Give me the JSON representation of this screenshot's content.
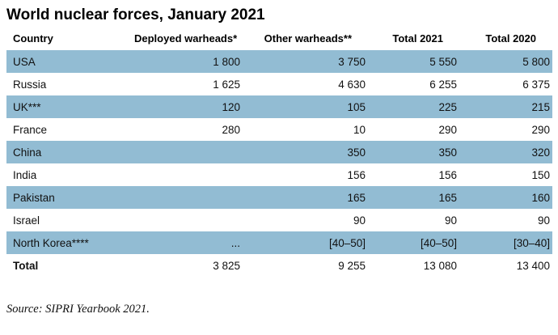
{
  "chart_data": {
    "type": "table",
    "title": "World nuclear forces, January 2021",
    "source": "Source: SIPRI Yearbook 2021.",
    "colors": {
      "row_highlight": "#92bcd3",
      "text": "#111111"
    },
    "columns": [
      "Country",
      "Deployed warheads*",
      "Other warheads**",
      "Total 2021",
      "Total 2020"
    ],
    "rows": [
      {
        "cells": [
          "USA",
          "1 800",
          "3 750",
          "5 550",
          "5 800"
        ],
        "highlight": true,
        "is_total": false
      },
      {
        "cells": [
          "Russia",
          "1 625",
          "4 630",
          "6 255",
          "6 375"
        ],
        "highlight": false,
        "is_total": false
      },
      {
        "cells": [
          "UK***",
          "120",
          "105",
          "225",
          "215"
        ],
        "highlight": true,
        "is_total": false
      },
      {
        "cells": [
          "France",
          "280",
          "10",
          "290",
          "290"
        ],
        "highlight": false,
        "is_total": false
      },
      {
        "cells": [
          "China",
          "",
          "350",
          "350",
          "320"
        ],
        "highlight": true,
        "is_total": false
      },
      {
        "cells": [
          "India",
          "",
          "156",
          "156",
          "150"
        ],
        "highlight": false,
        "is_total": false
      },
      {
        "cells": [
          "Pakistan",
          "",
          "165",
          "165",
          "160"
        ],
        "highlight": true,
        "is_total": false
      },
      {
        "cells": [
          "Israel",
          "",
          "90",
          "90",
          "90"
        ],
        "highlight": false,
        "is_total": false
      },
      {
        "cells": [
          "North Korea****",
          "...",
          "[40–50]",
          "[40–50]",
          "[30–40]"
        ],
        "highlight": true,
        "is_total": false
      },
      {
        "cells": [
          "Total",
          "3 825",
          "9 255",
          "13 080",
          "13 400"
        ],
        "highlight": false,
        "is_total": true
      }
    ]
  }
}
